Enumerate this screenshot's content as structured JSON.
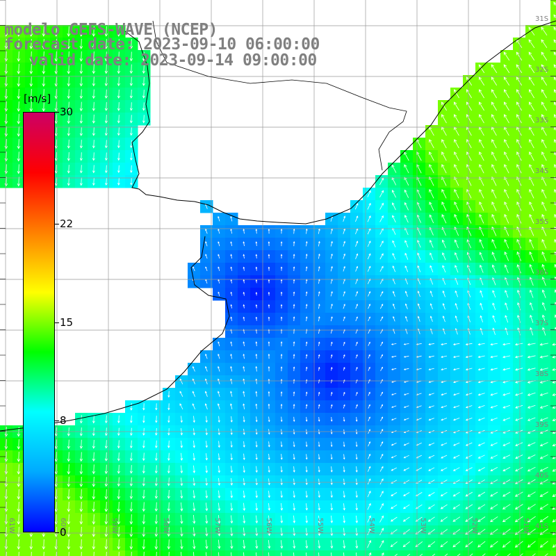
{
  "title": {
    "line1": "modelo GEFS-WAVE (NCEP)",
    "line2": "forecast date: 2023-09-10 06:00:00",
    "line3": "valid date: 2023-09-14 09:00:00"
  },
  "colorbar": {
    "unit": "[m/s]",
    "ticks": [
      {
        "label": "30",
        "value": 30
      },
      {
        "label": "22",
        "value": 22
      },
      {
        "label": "15",
        "value": 15
      },
      {
        "label": "8",
        "value": 8
      },
      {
        "label": "0",
        "value": 0
      }
    ],
    "colors": [
      "#0000ff",
      "#00aaff",
      "#00ffff",
      "#00ff00",
      "#ffff00",
      "#ff8000",
      "#ff0000",
      "#cc0066"
    ]
  },
  "map": {
    "lat_labels": [
      "31S",
      "32S",
      "33S",
      "34S",
      "35S",
      "36S",
      "37S",
      "38S",
      "39S",
      "40S",
      "41S"
    ],
    "lon_labels": [
      "61W",
      "60W",
      "59W",
      "58W",
      "57W",
      "56W",
      "55W",
      "54W",
      "53W",
      "52W",
      "51W"
    ],
    "land_color": "#ffffff",
    "grid_color": "#999999",
    "label_color": "#808080"
  }
}
